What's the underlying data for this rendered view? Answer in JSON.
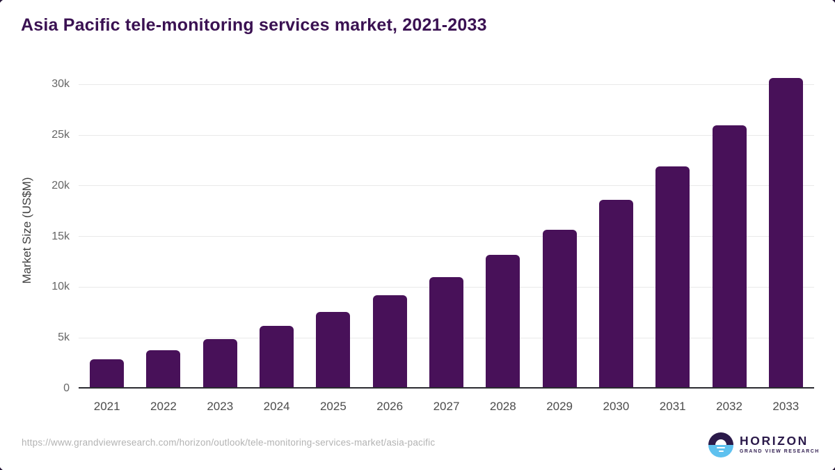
{
  "window": {
    "background_color": "#ffffff",
    "corner_frame_color": "#241436"
  },
  "chart_data": {
    "type": "bar",
    "title": "Asia Pacific tele-monitoring services market, 2021-2033",
    "categories": [
      "2021",
      "2022",
      "2023",
      "2024",
      "2025",
      "2026",
      "2027",
      "2028",
      "2029",
      "2030",
      "2031",
      "2032",
      "2033"
    ],
    "values": [
      2900,
      3800,
      4900,
      6200,
      7550,
      9200,
      11000,
      13200,
      15700,
      18600,
      21950,
      26000,
      30650
    ],
    "xlabel": "",
    "ylabel": "Market Size (US$M)",
    "ylim": [
      0,
      32000
    ],
    "yticks": [
      {
        "value": 0,
        "label": "0"
      },
      {
        "value": 5000,
        "label": "5k"
      },
      {
        "value": 10000,
        "label": "10k"
      },
      {
        "value": 15000,
        "label": "15k"
      },
      {
        "value": 20000,
        "label": "20k"
      },
      {
        "value": 25000,
        "label": "25k"
      },
      {
        "value": 30000,
        "label": "30k"
      }
    ],
    "grid": true,
    "legend_position": "none",
    "colors": {
      "bar": "#481159",
      "title": "#3a1152",
      "gridline": "#e9e9e9",
      "axis_line": "#2b2b31",
      "y_tick_label": "#666666",
      "x_tick_label": "#4c4c4c",
      "y_axis_title": "#3f3f3f"
    }
  },
  "footer": {
    "source_url": "https://www.grandviewresearch.com/horizon/outlook/tele-monitoring-services-market/asia-pacific",
    "logo": {
      "wordmark": "HORIZON",
      "subtitle": "GRAND VIEW RESEARCH",
      "navy_color": "#2b1a4a",
      "blue_color": "#5ec1ef"
    }
  }
}
